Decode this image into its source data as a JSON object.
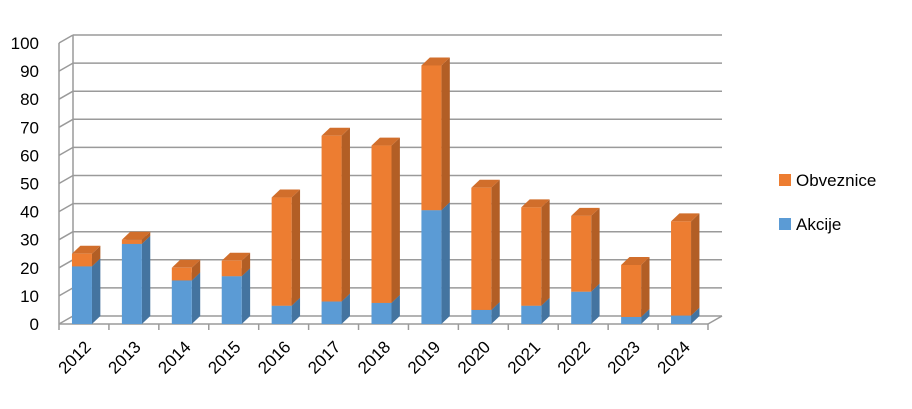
{
  "chart_data": {
    "type": "bar",
    "stacked": true,
    "three_d": true,
    "categories": [
      "2012",
      "2013",
      "2014",
      "2015",
      "2016",
      "2017",
      "2018",
      "2019",
      "2020",
      "2021",
      "2022",
      "2023",
      "2024"
    ],
    "series": [
      {
        "name": "Akcije",
        "color": "#5B9BD5",
        "values": [
          20.5,
          28.5,
          15.5,
          17,
          6.5,
          8,
          7.5,
          40.5,
          5,
          6.5,
          11.5,
          2.5,
          3
        ]
      },
      {
        "name": "Obveznice",
        "color": "#ED7D31",
        "values": [
          4.5,
          1.5,
          4.5,
          5.5,
          38.5,
          59,
          56,
          51.5,
          43.5,
          35,
          27,
          18.5,
          33.5
        ]
      }
    ],
    "yticks": [
      "0",
      "10",
      "20",
      "30",
      "40",
      "50",
      "60",
      "70",
      "80",
      "90",
      "100"
    ],
    "ylim": [
      0,
      100
    ],
    "grid": true,
    "legend": {
      "position": "right",
      "entries": [
        "Obveznice",
        "Akcije"
      ]
    }
  }
}
